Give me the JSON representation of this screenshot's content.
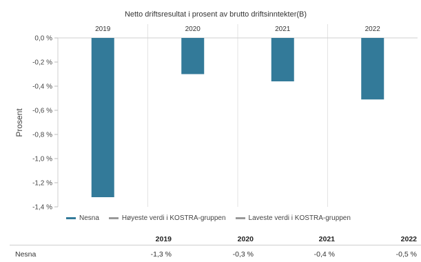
{
  "chart_data": {
    "type": "bar",
    "title": "Netto driftsresultat i prosent av brutto driftsinntekter(B)",
    "categories": [
      "2019",
      "2020",
      "2021",
      "2022"
    ],
    "series": [
      {
        "name": "Nesna",
        "values": [
          -1.32,
          -0.3,
          -0.36,
          -0.51
        ],
        "color": "#337a99"
      }
    ],
    "ylabel": "Prosent",
    "ylim": [
      -1.4,
      0.0
    ],
    "yticks": [
      0.0,
      -0.2,
      -0.4,
      -0.6,
      -0.8,
      -1.0,
      -1.2,
      -1.4
    ],
    "ytick_labels": [
      "0,0 %",
      "-0,2 %",
      "-0,4 %",
      "-0,6 %",
      "-0,8 %",
      "-1,0 %",
      "-1,2 %",
      "-1,4 %"
    ],
    "legend": [
      {
        "label": "Nesna",
        "color": "#337a99"
      },
      {
        "label": "Høyeste verdi i KOSTRA-gruppen",
        "color": "#999999"
      },
      {
        "label": "Laveste verdi i KOSTRA-gruppen",
        "color": "#999999"
      }
    ],
    "legend_position": "bottom-left",
    "grid": true
  },
  "table": {
    "headers": [
      "2019",
      "2020",
      "2021",
      "2022"
    ],
    "rows": [
      {
        "label": "Nesna",
        "values": [
          "-1,3 %",
          "-0,3 %",
          "-0,4 %",
          "-0,5 %"
        ]
      }
    ]
  }
}
